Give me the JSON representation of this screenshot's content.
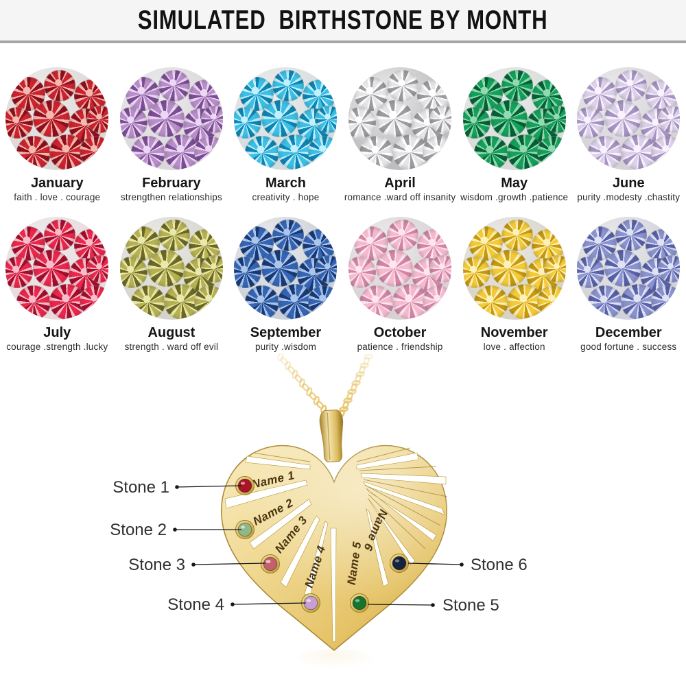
{
  "title": "SIMULATED  BIRTHSTONE BY MONTH",
  "months": [
    {
      "name": "January",
      "meaning": "faith . love . courage",
      "colors": {
        "main": "#cc2430",
        "light": "#f5b9ae",
        "dark": "#8e101f",
        "bg": "#ddd8d6"
      }
    },
    {
      "name": "February",
      "meaning": "strengthen relationships",
      "colors": {
        "main": "#b98fc9",
        "light": "#ecd8f4",
        "dark": "#7c4e95",
        "bg": "#dbd7db"
      }
    },
    {
      "name": "March",
      "meaning": "creativity . hope",
      "colors": {
        "main": "#3cc0e5",
        "light": "#c2f0fc",
        "dark": "#0e85b4",
        "bg": "#d7dbdd"
      }
    },
    {
      "name": "April",
      "meaning": "romance .ward off insanity",
      "colors": {
        "main": "#e6e6e8",
        "light": "#ffffff",
        "dark": "#9d9da1",
        "bg": "#bdbdbf"
      }
    },
    {
      "name": "May",
      "meaning": "wisdom .growth .patience",
      "colors": {
        "main": "#14a15b",
        "light": "#92dab2",
        "dark": "#056237",
        "bg": "#d8dbd9"
      }
    },
    {
      "name": "June",
      "meaning": "purity .modesty .chastity",
      "colors": {
        "main": "#dbd1ea",
        "light": "#f8f3fc",
        "dark": "#a794c3",
        "bg": "#d4d1d7"
      }
    },
    {
      "name": "July",
      "meaning": "courage .strength .lucky",
      "colors": {
        "main": "#e9284c",
        "light": "#fabcc8",
        "dark": "#a30e2e",
        "bg": "#e9dadd"
      }
    },
    {
      "name": "August",
      "meaning": "strength . ward off evil",
      "colors": {
        "main": "#b6b254",
        "light": "#ebe8ab",
        "dark": "#6c6a24",
        "bg": "#d5d4cb"
      }
    },
    {
      "name": "September",
      "meaning": "purity .wisdom",
      "colors": {
        "main": "#3566b5",
        "light": "#abc5eb",
        "dark": "#193a77",
        "bg": "#cbd1d9"
      }
    },
    {
      "name": "October",
      "meaning": "patience . friendship",
      "colors": {
        "main": "#f5bace",
        "light": "#fde6ef",
        "dark": "#d286a7",
        "bg": "#d8d1d4"
      }
    },
    {
      "name": "November",
      "meaning": "love . affection",
      "colors": {
        "main": "#f3ca39",
        "light": "#fdf1b8",
        "dark": "#c79910",
        "bg": "#d7d3c7"
      }
    },
    {
      "name": "December",
      "meaning": "good fortune . success",
      "colors": {
        "main": "#8b93d0",
        "light": "#dfe2f3",
        "dark": "#5961a7",
        "bg": "#d1d3db"
      }
    }
  ],
  "pendant": {
    "names": [
      "Name 1",
      "Name 2",
      "Name 3",
      "Name 4",
      "Name 5",
      "Name 6"
    ],
    "stones": [
      {
        "label": "Stone 1",
        "color": "#a91427"
      },
      {
        "label": "Stone 2",
        "color": "#8fb886"
      },
      {
        "label": "Stone 3",
        "color": "#c4606a"
      },
      {
        "label": "Stone 4",
        "color": "#c79fd4"
      },
      {
        "label": "Stone 5",
        "color": "#17742d"
      },
      {
        "label": "Stone 6",
        "color": "#16233f"
      }
    ],
    "gold": "#e7c469"
  }
}
